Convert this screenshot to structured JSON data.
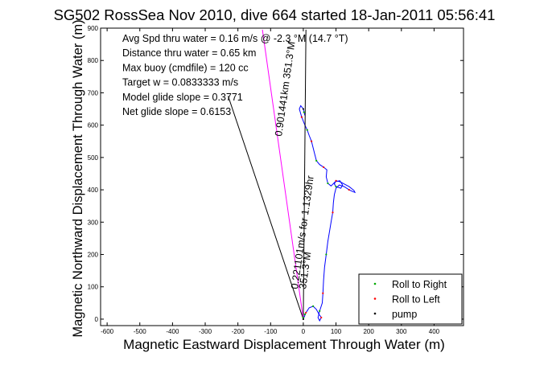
{
  "chart_data": {
    "type": "line",
    "title": "SG502 RossSea Nov 2010, dive 664 started 18-Jan-2011 05:56:41",
    "xlabel": "Magnetic Eastward Displacement Through Water (m)",
    "ylabel": "Magnetic Northward Displacement Through Water (m)",
    "xlim": [
      -620,
      490
    ],
    "ylim": [
      -20,
      900
    ],
    "xticks": [
      -600,
      -500,
      -400,
      -300,
      -200,
      -100,
      0,
      100,
      200,
      300,
      400
    ],
    "yticks": [
      0,
      100,
      200,
      300,
      400,
      500,
      600,
      700,
      800,
      900
    ],
    "grid": false,
    "annotations": [
      "Avg Spd thru water = 0.16 m/s @ -2.3 °M (14.7 °T)",
      "Distance thru water = 0.65 km",
      "Max buoy (cmdfile) = 120 cc",
      "Target w = 0.0833333 m/s",
      "Model glide slope = 0.3771",
      "Net glide slope = 0.6153"
    ],
    "rotated_labels": [
      "0.901441km 351.3°M",
      "0.221101m/s for 1.1329hr",
      "351.3°M"
    ],
    "series": [
      {
        "color": "#0000ff",
        "points": [
          [
            0,
            0
          ],
          [
            8,
            20
          ],
          [
            18,
            35
          ],
          [
            30,
            40
          ],
          [
            40,
            30
          ],
          [
            48,
            15
          ],
          [
            55,
            5
          ],
          [
            50,
            -5
          ],
          [
            45,
            5
          ],
          [
            50,
            25
          ],
          [
            58,
            50
          ],
          [
            60,
            80
          ],
          [
            62,
            120
          ],
          [
            65,
            160
          ],
          [
            70,
            200
          ],
          [
            75,
            240
          ],
          [
            80,
            270
          ],
          [
            85,
            300
          ],
          [
            90,
            330
          ],
          [
            92,
            360
          ],
          [
            95,
            385
          ],
          [
            100,
            405
          ],
          [
            110,
            415
          ],
          [
            125,
            410
          ],
          [
            140,
            400
          ],
          [
            150,
            395
          ],
          [
            158,
            392
          ],
          [
            155,
            398
          ],
          [
            140,
            410
          ],
          [
            125,
            418
          ],
          [
            112,
            425
          ],
          [
            100,
            428
          ],
          [
            95,
            418
          ],
          [
            100,
            410
          ],
          [
            115,
            405
          ],
          [
            120,
            415
          ],
          [
            112,
            428
          ],
          [
            98,
            425
          ],
          [
            85,
            412
          ],
          [
            75,
            420
          ],
          [
            70,
            440
          ],
          [
            72,
            462
          ],
          [
            62,
            470
          ],
          [
            50,
            478
          ],
          [
            40,
            490
          ],
          [
            35,
            510
          ],
          [
            30,
            530
          ],
          [
            25,
            550
          ],
          [
            18,
            568
          ],
          [
            12,
            585
          ],
          [
            5,
            600
          ],
          [
            -5,
            625
          ],
          [
            -12,
            650
          ],
          [
            -8,
            660
          ],
          [
            0,
            650
          ],
          [
            5,
            630
          ]
        ]
      },
      {
        "color": "#000000",
        "points": [
          [
            0,
            0
          ],
          [
            -230,
            690
          ]
        ]
      },
      {
        "color": "#000000",
        "points": [
          [
            0,
            0
          ],
          [
            8,
            895
          ]
        ]
      },
      {
        "color": "#ff00ff",
        "points": [
          [
            0,
            0
          ],
          [
            -125,
            895
          ]
        ]
      }
    ],
    "markers": [
      {
        "name": "Roll to Right",
        "color": "#00aa00",
        "points": [
          [
            0,
            5
          ],
          [
            5,
            15
          ],
          [
            30,
            40
          ],
          [
            50,
            25
          ],
          [
            70,
            200
          ],
          [
            100,
            410
          ],
          [
            75,
            420
          ],
          [
            40,
            490
          ],
          [
            12,
            585
          ],
          [
            2,
            640
          ]
        ]
      },
      {
        "name": "Roll to Left",
        "color": "#ff0000",
        "points": [
          [
            8,
            20
          ],
          [
            55,
            5
          ],
          [
            60,
            80
          ],
          [
            90,
            330
          ],
          [
            140,
            400
          ],
          [
            100,
            428
          ],
          [
            62,
            470
          ],
          [
            25,
            550
          ],
          [
            -5,
            625
          ]
        ]
      },
      {
        "name": "pump",
        "color": "#000000",
        "points": [
          [
            0,
            0
          ],
          [
            0,
            650
          ]
        ]
      }
    ],
    "legend_position": "bottom-right"
  }
}
